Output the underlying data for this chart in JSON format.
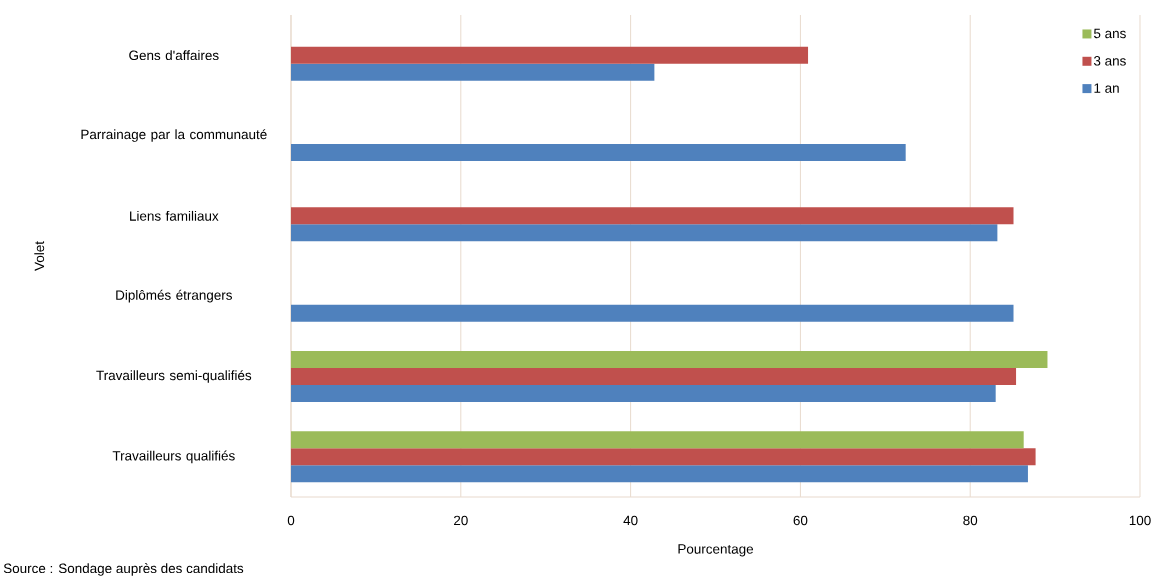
{
  "chart_data": {
    "type": "bar",
    "orientation": "horizontal",
    "xlabel": "Pourcentage",
    "ylabel": "Volet",
    "categories": [
      "Gens d'affaires",
      "Parrainage par la communauté",
      "Liens familiaux",
      "Diplômés étrangers",
      "Travailleurs semi-qualifiés",
      "Travailleurs qualifiés"
    ],
    "series": [
      {
        "name": "1 an",
        "color": "#4f81bd",
        "values": [
          42.8,
          72.4,
          83.2,
          85.1,
          83.0,
          86.8
        ]
      },
      {
        "name": "3 ans",
        "color": "#c0504d",
        "values": [
          60.9,
          null,
          85.1,
          null,
          85.4,
          87.7
        ]
      },
      {
        "name": "5 ans",
        "color": "#9bbb59",
        "values": [
          null,
          null,
          null,
          null,
          89.1,
          86.3
        ]
      }
    ],
    "xlim": [
      0,
      100
    ],
    "xticks": [
      0,
      20,
      40,
      60,
      80,
      100
    ],
    "grid": "x",
    "legend": "top right",
    "annotations": [
      "Source : Sondage auprès des candidats"
    ]
  }
}
